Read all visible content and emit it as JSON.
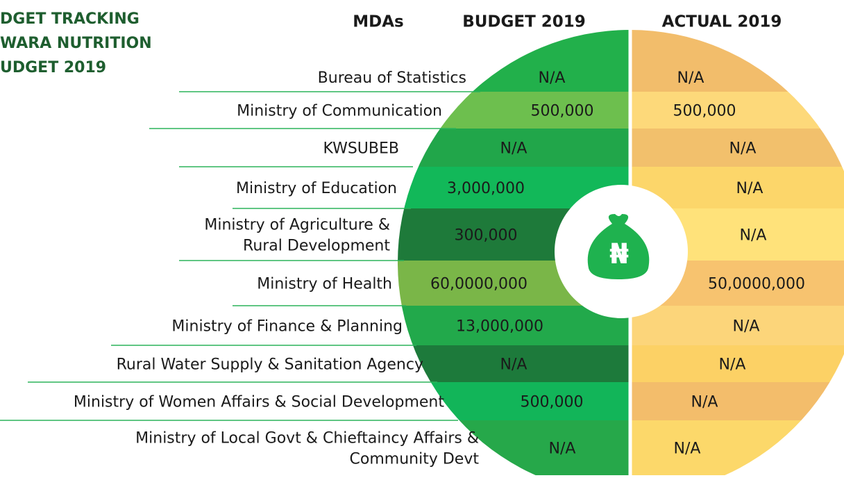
{
  "title_lines": [
    "DGET TRACKING",
    "WARA NUTRITION",
    "UDGET 2019"
  ],
  "headers": {
    "mdas": "MDAs",
    "budget": "BUDGET 2019",
    "actual": "ACTUAL 2019"
  },
  "center_icon": "₦",
  "table": {
    "rows": [
      {
        "mda": [
          "Bureau of Statistics"
        ],
        "budget": "N/A",
        "actual": "N/A"
      },
      {
        "mda": [
          "Ministry of Communication"
        ],
        "budget": "500,000",
        "actual": "500,000"
      },
      {
        "mda": [
          "KWSUBEB"
        ],
        "budget": "N/A",
        "actual": "N/A"
      },
      {
        "mda": [
          "Ministry of Education"
        ],
        "budget": "3,000,000",
        "actual": "N/A"
      },
      {
        "mda": [
          "Ministry of Agriculture &",
          "Rural Development"
        ],
        "budget": "300,000",
        "actual": "N/A"
      },
      {
        "mda": [
          "Ministry of Health"
        ],
        "budget": "60,0000,000",
        "actual": "50,0000,000"
      },
      {
        "mda": [
          "Ministry of Finance & Planning"
        ],
        "budget": "13,000,000",
        "actual": "N/A"
      },
      {
        "mda": [
          "Rural Water Supply & Sanitation Agency"
        ],
        "budget": "N/A",
        "actual": "N/A"
      },
      {
        "mda": [
          "Ministry of Women Affairs & Social Development"
        ],
        "budget": "500,000",
        "actual": "N/A"
      },
      {
        "mda": [
          "Ministry of Local Govt & Chieftaincy Affairs &",
          "Community Devt"
        ],
        "budget": "N/A",
        "actual": "N/A"
      }
    ]
  }
}
